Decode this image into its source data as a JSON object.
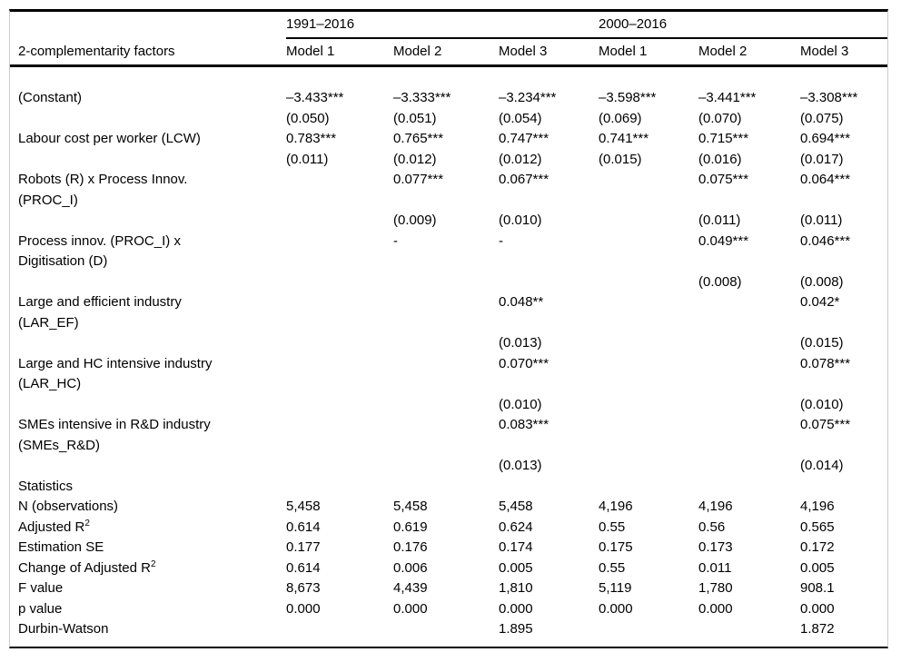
{
  "table": {
    "factors_header": "2-complementarity factors",
    "period_groups": [
      {
        "label": "1991–2016",
        "models": [
          "Model 1",
          "Model 2",
          "Model 3"
        ]
      },
      {
        "label": "2000–2016",
        "models": [
          "Model 1",
          "Model 2",
          "Model 3"
        ]
      }
    ],
    "rows": [
      {
        "label": "(Constant)",
        "cells": [
          "–3.433***",
          "–3.333***",
          "–3.234***",
          "–3.598***",
          "–3.441***",
          "–3.308***"
        ]
      },
      {
        "label": "",
        "cells": [
          "(0.050)",
          "(0.051)",
          "(0.054)",
          "(0.069)",
          "(0.070)",
          "(0.075)"
        ]
      },
      {
        "label": "Labour cost per worker (LCW)",
        "cells": [
          "0.783***",
          "0.765***",
          "0.747***",
          "0.741***",
          "0.715***",
          "0.694***"
        ]
      },
      {
        "label": "",
        "cells": [
          "(0.011)",
          "(0.012)",
          "(0.012)",
          "(0.015)",
          "(0.016)",
          "(0.017)"
        ]
      },
      {
        "label": "Robots (R) x Process Innov.",
        "cells": [
          "",
          "0.077***",
          "0.067***",
          "",
          "0.075***",
          "0.064***"
        ]
      },
      {
        "label": "(PROC_I)",
        "cells": [
          "",
          "",
          "",
          "",
          "",
          ""
        ]
      },
      {
        "label": "",
        "cells": [
          "",
          "(0.009)",
          "(0.010)",
          "",
          "(0.011)",
          "(0.011)"
        ]
      },
      {
        "label": "Process innov. (PROC_I) x",
        "cells": [
          "",
          "-",
          "-",
          "",
          "0.049***",
          "0.046***"
        ]
      },
      {
        "label": "Digitisation (D)",
        "cells": [
          "",
          "",
          "",
          "",
          "",
          ""
        ]
      },
      {
        "label": "",
        "cells": [
          "",
          "",
          "",
          "",
          "(0.008)",
          "(0.008)"
        ]
      },
      {
        "label": "Large and efficient industry",
        "cells": [
          "",
          "",
          "0.048**",
          "",
          "",
          "0.042*"
        ]
      },
      {
        "label": "(LAR_EF)",
        "cells": [
          "",
          "",
          "",
          "",
          "",
          ""
        ]
      },
      {
        "label": "",
        "cells": [
          "",
          "",
          "(0.013)",
          "",
          "",
          "(0.015)"
        ]
      },
      {
        "label": "Large and HC intensive industry",
        "cells": [
          "",
          "",
          "0.070***",
          "",
          "",
          "0.078***"
        ]
      },
      {
        "label": "(LAR_HC)",
        "cells": [
          "",
          "",
          "",
          "",
          "",
          ""
        ]
      },
      {
        "label": "",
        "cells": [
          "",
          "",
          "(0.010)",
          "",
          "",
          "(0.010)"
        ]
      },
      {
        "label": "SMEs intensive in R&D industry",
        "cells": [
          "",
          "",
          "0.083***",
          "",
          "",
          "0.075***"
        ]
      },
      {
        "label": "(SMEs_R&D)",
        "cells": [
          "",
          "",
          "",
          "",
          "",
          ""
        ]
      },
      {
        "label": "",
        "cells": [
          "",
          "",
          "(0.013)",
          "",
          "",
          "(0.014)"
        ]
      },
      {
        "label": "Statistics",
        "cells": [
          "",
          "",
          "",
          "",
          "",
          ""
        ]
      },
      {
        "label": "N (observations)",
        "cells": [
          "5,458",
          "5,458",
          "5,458",
          "4,196",
          "4,196",
          "4,196"
        ]
      },
      {
        "label": "Adjusted R",
        "label_sup": "2",
        "cells": [
          "0.614",
          "0.619",
          "0.624",
          "0.55",
          "0.56",
          "0.565"
        ]
      },
      {
        "label": "Estimation SE",
        "cells": [
          "0.177",
          "0.176",
          "0.174",
          "0.175",
          "0.173",
          "0.172"
        ]
      },
      {
        "label": "Change of Adjusted R",
        "label_sup": "2",
        "cells": [
          "0.614",
          "0.006",
          "0.005",
          "0.55",
          "0.011",
          "0.005"
        ]
      },
      {
        "label": "F value",
        "cells": [
          "8,673",
          "4,439",
          "1,810",
          "5,119",
          "1,780",
          "908.1"
        ]
      },
      {
        "label": "p value",
        "cells": [
          "0.000",
          "0.000",
          "0.000",
          "0.000",
          "0.000",
          "0.000"
        ]
      },
      {
        "label": "Durbin-Watson",
        "cells": [
          "",
          "",
          "1.895",
          "",
          "",
          "1.872"
        ]
      }
    ]
  }
}
